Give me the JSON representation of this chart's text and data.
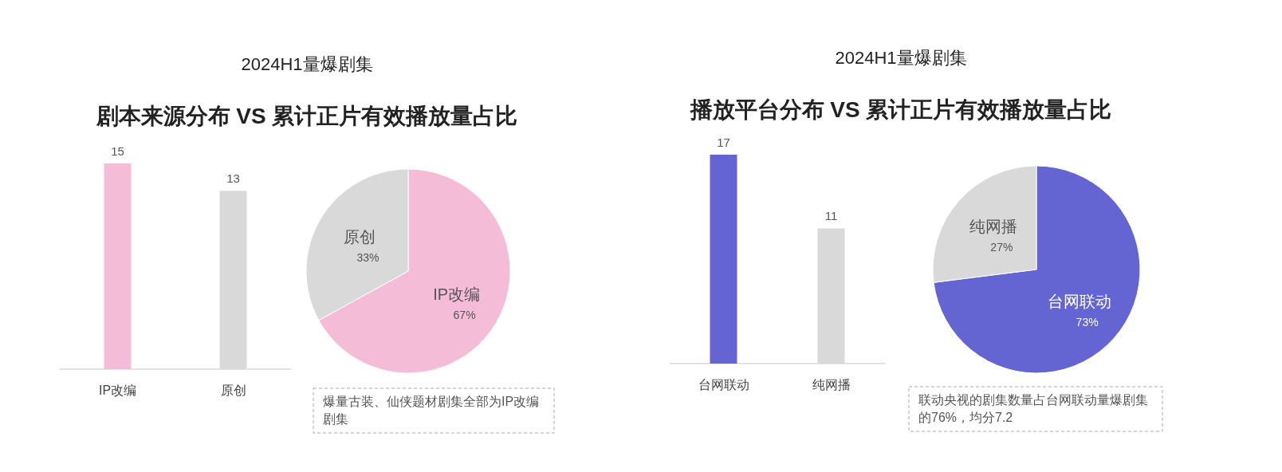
{
  "chart_data": [
    {
      "type": "bar",
      "title": "2024H1量爆剧集",
      "subtitle": "剧本来源分布 VS 累计正片有效播放量占比",
      "categories": [
        "IP改编",
        "原创"
      ],
      "values": [
        15,
        13
      ],
      "colors": [
        "#f4bcd6",
        "#d9d9d9"
      ],
      "data_labels": true
    },
    {
      "type": "pie",
      "categories": [
        "IP改编",
        "原创"
      ],
      "values": [
        67,
        33
      ],
      "value_labels": [
        "67%",
        "33%"
      ],
      "colors": [
        "#f4bcd6",
        "#d9d9d9"
      ],
      "annotations": [
        "爆量古装、仙侠题材剧集全部为IP改编剧集"
      ]
    },
    {
      "type": "bar",
      "title": "2024H1量爆剧集",
      "subtitle": "播放平台分布 VS 累计正片有效播放量占比",
      "categories": [
        "台网联动",
        "纯网播"
      ],
      "values": [
        17,
        11
      ],
      "colors": [
        "#6464d2",
        "#d9d9d9"
      ],
      "data_labels": true
    },
    {
      "type": "pie",
      "categories": [
        "台网联动",
        "纯网播"
      ],
      "values": [
        73,
        27
      ],
      "value_labels": [
        "73%",
        "27%"
      ],
      "colors": [
        "#6464d2",
        "#d9d9d9"
      ],
      "annotations": [
        "联动央视的剧集数量占台网联动量爆剧集的76%，均分7.2"
      ]
    }
  ]
}
